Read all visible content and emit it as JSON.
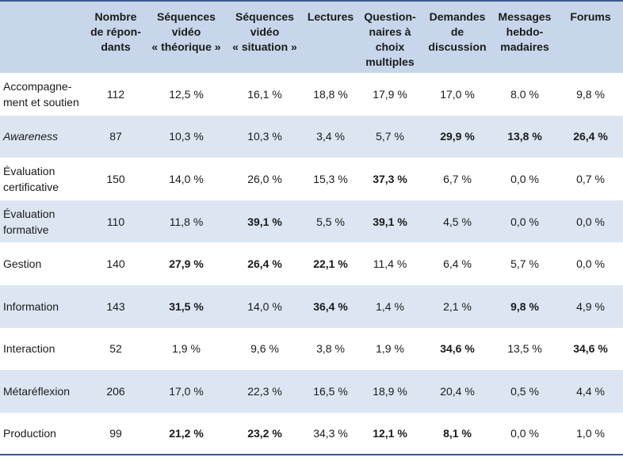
{
  "table": {
    "headers": [
      "",
      [
        "Nombre",
        "de répon-",
        "dants"
      ],
      [
        "Séquences",
        "vidéo",
        "« théorique »"
      ],
      [
        "Séquences",
        "vidéo",
        "« situation »"
      ],
      [
        "Lectures"
      ],
      [
        "Question-",
        "naires à",
        "choix",
        "multiples"
      ],
      [
        "Demandes",
        "de",
        "discussion"
      ],
      [
        "Messages",
        "hebdo-",
        "madaires"
      ],
      [
        "Forums"
      ]
    ],
    "rows": [
      {
        "label": [
          "Accompagne-",
          "ment et soutien"
        ],
        "italic": false,
        "cells": [
          "112",
          "12,5 %",
          "16,1 %",
          "18,8 %",
          "17,9 %",
          "17,0 %",
          "8.0 %",
          "9,8 %"
        ],
        "bold": [
          false,
          false,
          false,
          false,
          false,
          false,
          false,
          false
        ]
      },
      {
        "label": [
          "Awareness"
        ],
        "italic": true,
        "cells": [
          "87",
          "10,3 %",
          "10,3 %",
          "3,4 %",
          "5,7 %",
          "29,9 %",
          "13,8 %",
          "26,4 %"
        ],
        "bold": [
          false,
          false,
          false,
          false,
          false,
          true,
          true,
          true
        ]
      },
      {
        "label": [
          "Évaluation",
          "certificative"
        ],
        "italic": false,
        "cells": [
          "150",
          "14,0 %",
          "26,0 %",
          "15,3 %",
          "37,3 %",
          "6,7 %",
          "0,0 %",
          "0,7 %"
        ],
        "bold": [
          false,
          false,
          false,
          false,
          true,
          false,
          false,
          false
        ]
      },
      {
        "label": [
          "Évaluation",
          "formative"
        ],
        "italic": false,
        "cells": [
          "110",
          "11,8 %",
          "39,1 %",
          "5,5 %",
          "39,1 %",
          "4,5 %",
          "0,0 %",
          "0,0 %"
        ],
        "bold": [
          false,
          false,
          true,
          false,
          true,
          false,
          false,
          false
        ]
      },
      {
        "label": [
          "Gestion"
        ],
        "italic": false,
        "cells": [
          "140",
          "27,9 %",
          "26,4 %",
          "22,1 %",
          "11,4 %",
          "6,4 %",
          "5,7 %",
          "0,0 %"
        ],
        "bold": [
          false,
          true,
          true,
          true,
          false,
          false,
          false,
          false
        ]
      },
      {
        "label": [
          "Information"
        ],
        "italic": false,
        "cells": [
          "143",
          "31,5 %",
          "14,0 %",
          "36,4 %",
          "1,4 %",
          "2,1 %",
          "9,8 %",
          "4,9 %"
        ],
        "bold": [
          false,
          true,
          false,
          true,
          false,
          false,
          true,
          false
        ]
      },
      {
        "label": [
          "Interaction"
        ],
        "italic": false,
        "cells": [
          "52",
          "1,9 %",
          "9,6 %",
          "3,8 %",
          "1,9 %",
          "34,6 %",
          "13,5 %",
          "34,6 %"
        ],
        "bold": [
          false,
          false,
          false,
          false,
          false,
          true,
          false,
          true
        ]
      },
      {
        "label": [
          "Métaréflexion"
        ],
        "italic": false,
        "cells": [
          "206",
          "17,0 %",
          "22,3 %",
          "16,5 %",
          "18,9 %",
          "20,4 %",
          "0,5 %",
          "4,4 %"
        ],
        "bold": [
          false,
          false,
          false,
          false,
          false,
          false,
          false,
          false
        ]
      },
      {
        "label": [
          "Production"
        ],
        "italic": false,
        "cells": [
          "99",
          "21,2 %",
          "23,2 %",
          "34,3 %",
          "12,1 %",
          "8,1 %",
          "0,0 %",
          "1,0 %"
        ],
        "bold": [
          false,
          true,
          true,
          false,
          true,
          true,
          false,
          false
        ]
      }
    ]
  }
}
